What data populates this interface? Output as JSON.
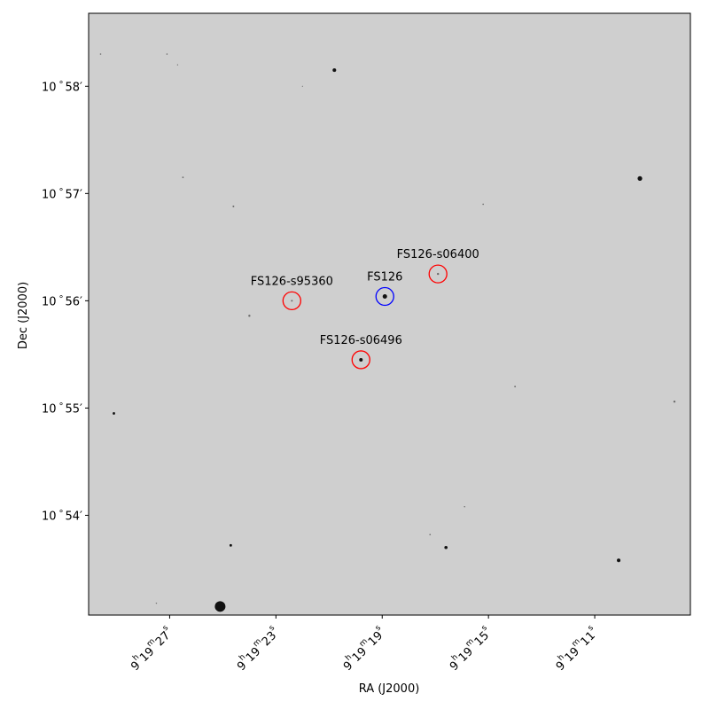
{
  "chart_data": {
    "type": "scatter",
    "image_kind": "grayscale sky image with WCS grid labels",
    "xlabel": "RA (J2000)",
    "ylabel": "Dec (J2000)",
    "grid": false,
    "colors": {
      "background": "#cfcfcf",
      "star": "#111111",
      "target_circle": "#0000ff",
      "comparison_circle": "#ff0000",
      "frame": "#000000"
    },
    "ra_ticks": [
      {
        "h": "9",
        "m": "19",
        "s": "27",
        "ra_s": 27
      },
      {
        "h": "9",
        "m": "19",
        "s": "23",
        "ra_s": 23
      },
      {
        "h": "9",
        "m": "19",
        "s": "19",
        "ra_s": 19
      },
      {
        "h": "9",
        "m": "19",
        "s": "15",
        "ra_s": 15
      },
      {
        "h": "9",
        "m": "19",
        "s": "11",
        "ra_s": 11
      }
    ],
    "dec_ticks": [
      {
        "deg": "10",
        "min": "58",
        "dec_m": 58
      },
      {
        "deg": "10",
        "min": "57",
        "dec_m": 57
      },
      {
        "deg": "10",
        "min": "56",
        "dec_m": 56
      },
      {
        "deg": "10",
        "min": "55",
        "dec_m": 55
      },
      {
        "deg": "10",
        "min": "54",
        "dec_m": 54
      }
    ],
    "ra_range_s": [
      30.05,
      7.4
    ],
    "dec_range_min": [
      53.07,
      58.68
    ],
    "annotations": [
      {
        "label": "FS126",
        "role": "target",
        "ra_s": 18.9,
        "dec_m": 56.04
      },
      {
        "label": "FS126-s06400",
        "role": "comparison",
        "ra_s": 16.9,
        "dec_m": 56.25
      },
      {
        "label": "FS126-s95360",
        "role": "comparison",
        "ra_s": 22.4,
        "dec_m": 56.0
      },
      {
        "label": "FS126-s06496",
        "role": "comparison",
        "ra_s": 19.8,
        "dec_m": 55.45
      }
    ],
    "stars": [
      {
        "ra_s": 20.8,
        "dec_m": 58.15,
        "mag": 2
      },
      {
        "ra_s": 18.9,
        "dec_m": 56.04,
        "mag": 2.5
      },
      {
        "ra_s": 19.8,
        "dec_m": 55.45,
        "mag": 2
      },
      {
        "ra_s": 16.9,
        "dec_m": 56.25,
        "mag": 1.2
      },
      {
        "ra_s": 22.4,
        "dec_m": 56.0,
        "mag": 1
      },
      {
        "ra_s": 9.3,
        "dec_m": 57.14,
        "mag": 2.6
      },
      {
        "ra_s": 25.1,
        "dec_m": 53.15,
        "mag": 6
      },
      {
        "ra_s": 24.7,
        "dec_m": 53.72,
        "mag": 1.4
      },
      {
        "ra_s": 16.6,
        "dec_m": 53.7,
        "mag": 1.8
      },
      {
        "ra_s": 10.1,
        "dec_m": 53.58,
        "mag": 2
      },
      {
        "ra_s": 29.1,
        "dec_m": 54.95,
        "mag": 1.4
      },
      {
        "ra_s": 8.0,
        "dec_m": 55.06,
        "mag": 1.2
      },
      {
        "ra_s": 24.6,
        "dec_m": 56.88,
        "mag": 1
      },
      {
        "ra_s": 24.0,
        "dec_m": 55.86,
        "mag": 1.2
      },
      {
        "ra_s": 26.5,
        "dec_m": 57.15,
        "mag": 0.9
      },
      {
        "ra_s": 14.0,
        "dec_m": 55.2,
        "mag": 0.9
      },
      {
        "ra_s": 15.2,
        "dec_m": 56.9,
        "mag": 0.8
      },
      {
        "ra_s": 29.6,
        "dec_m": 58.3,
        "mag": 0.8
      },
      {
        "ra_s": 27.1,
        "dec_m": 58.3,
        "mag": 0.8
      },
      {
        "ra_s": 17.2,
        "dec_m": 53.82,
        "mag": 0.8
      },
      {
        "ra_s": 15.9,
        "dec_m": 54.08,
        "mag": 0.7
      },
      {
        "ra_s": 22.0,
        "dec_m": 58.0,
        "mag": 0.6
      },
      {
        "ra_s": 27.5,
        "dec_m": 53.18,
        "mag": 0.7
      },
      {
        "ra_s": 26.7,
        "dec_m": 58.2,
        "mag": 0.6
      }
    ]
  }
}
